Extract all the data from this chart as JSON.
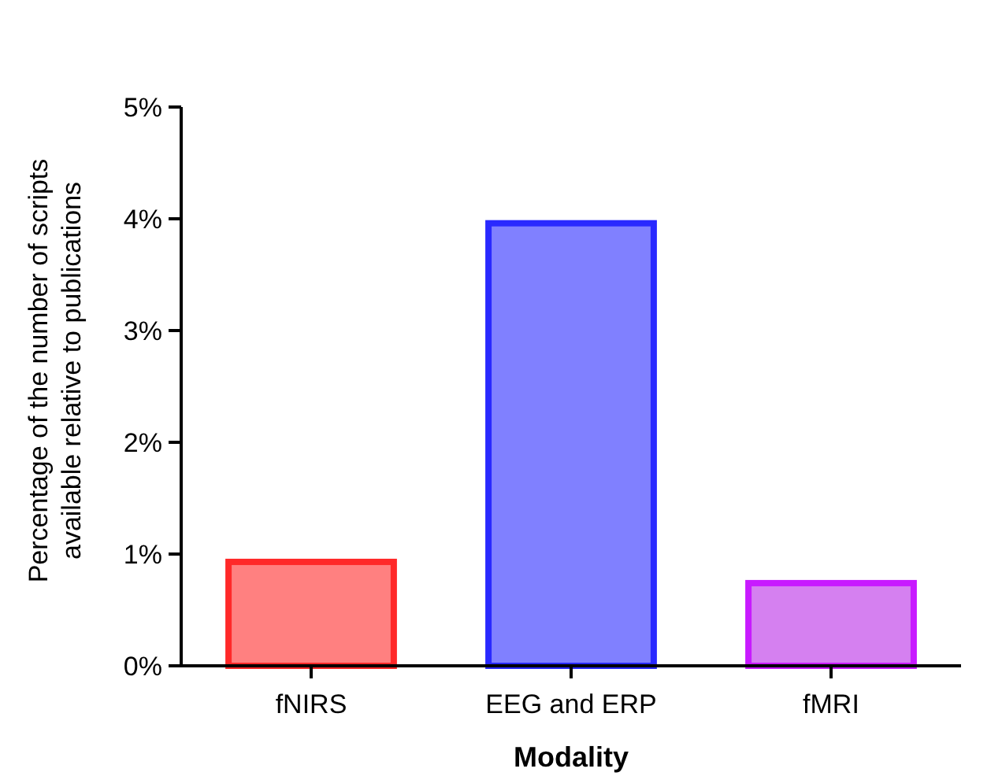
{
  "chart_data": {
    "type": "bar",
    "xlabel": "Modality",
    "ylabel": "Percentage of the number of scripts available relative to publications",
    "categories": [
      "fNIRS",
      "EEG and ERP",
      "fMRI"
    ],
    "values": [
      0.93,
      3.96,
      0.74
    ],
    "colors": [
      "#ff8080",
      "#8080ff",
      "#d580f0"
    ],
    "ylim": [
      0,
      5
    ],
    "yticks": [
      {
        "value": 0,
        "label": "0%"
      },
      {
        "value": 1,
        "label": "1%"
      },
      {
        "value": 2,
        "label": "2%"
      },
      {
        "value": 3,
        "label": "3%"
      },
      {
        "value": 4,
        "label": "4%"
      },
      {
        "value": 5,
        "label": "5%"
      }
    ],
    "grid": false
  }
}
